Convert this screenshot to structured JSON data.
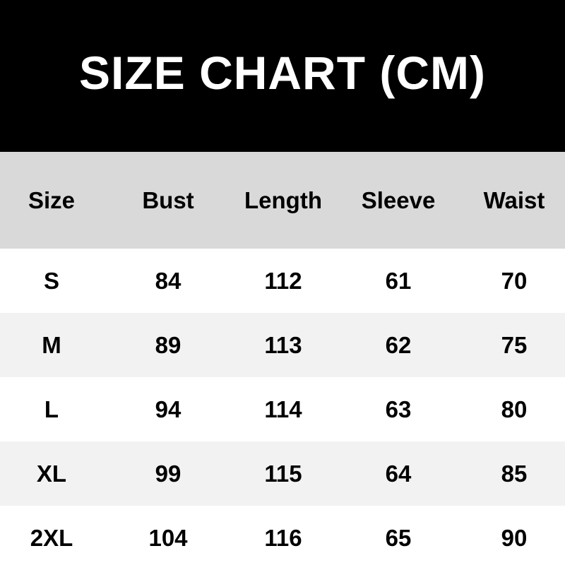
{
  "title": "SIZE CHART (CM)",
  "colors": {
    "title_bg": "#000000",
    "title_text": "#ffffff",
    "header_bg": "#d9d9d9",
    "row_alt_bg": "#f2f2f2",
    "row_bg": "#ffffff"
  },
  "chart_data": {
    "type": "table",
    "title": "SIZE CHART (CM)",
    "columns": [
      "Size",
      "Bust",
      "Length",
      "Sleeve",
      "Waist"
    ],
    "rows": [
      [
        "S",
        "84",
        "112",
        "61",
        "70"
      ],
      [
        "M",
        "89",
        "113",
        "62",
        "75"
      ],
      [
        "L",
        "94",
        "114",
        "63",
        "80"
      ],
      [
        "XL",
        "99",
        "115",
        "64",
        "85"
      ],
      [
        "2XL",
        "104",
        "116",
        "65",
        "90"
      ]
    ]
  }
}
